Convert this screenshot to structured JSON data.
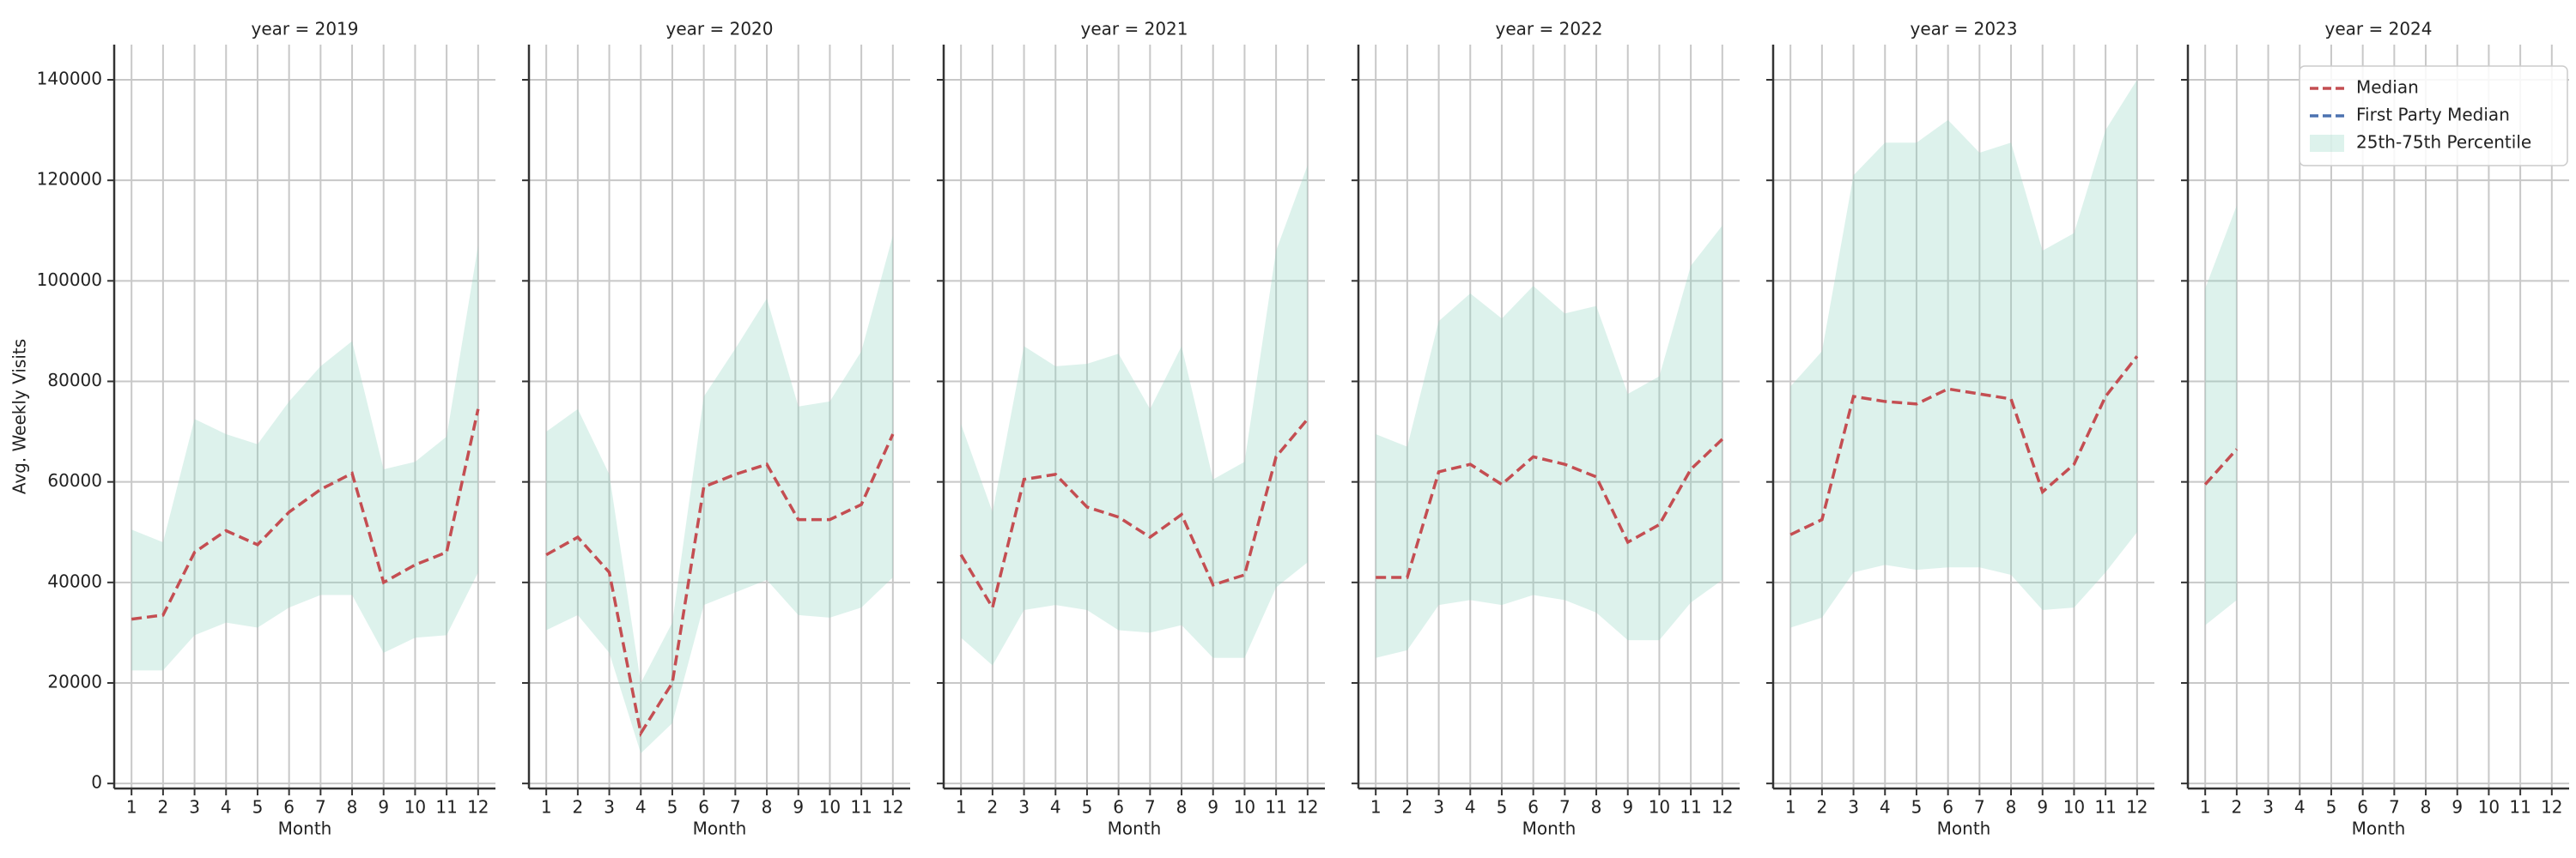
{
  "chart_data": [
    {
      "type": "line",
      "title": "year = 2019",
      "xlabel": "Month",
      "ylabel": "Avg. Weekly Visits",
      "x": [
        1,
        2,
        3,
        4,
        5,
        6,
        7,
        8,
        9,
        10,
        11,
        12
      ],
      "xlim": [
        0.45,
        12.55
      ],
      "xticks": [
        1,
        2,
        3,
        4,
        5,
        6,
        7,
        8,
        9,
        10,
        11,
        12
      ],
      "ylim": [
        -1000,
        147000
      ],
      "yticks": [
        0,
        20000,
        40000,
        60000,
        80000,
        100000,
        120000,
        140000
      ],
      "grid": true,
      "series": [
        {
          "color": "#c44e52",
          "dashed": true,
          "values": [
            32700,
            33500,
            46000,
            50300,
            47500,
            54000,
            58500,
            61700,
            40000,
            43500,
            46000,
            74500
          ]
        }
      ],
      "band": {
        "color": "#8fd3c0",
        "lower": [
          22500,
          22500,
          29500,
          32000,
          31000,
          35000,
          37500,
          37500,
          26000,
          29000,
          29500,
          42000
        ],
        "upper": [
          50500,
          48000,
          72500,
          69500,
          67500,
          76000,
          83000,
          88000,
          62500,
          64000,
          69000,
          107000
        ]
      }
    },
    {
      "type": "line",
      "title": "year = 2020",
      "xlabel": "Month",
      "x": [
        1,
        2,
        3,
        4,
        5,
        6,
        7,
        8,
        9,
        10,
        11,
        12
      ],
      "xlim": [
        0.45,
        12.55
      ],
      "xticks": [
        1,
        2,
        3,
        4,
        5,
        6,
        7,
        8,
        9,
        10,
        11,
        12
      ],
      "ylim": [
        -1000,
        147000
      ],
      "yticks": [
        0,
        20000,
        40000,
        60000,
        80000,
        100000,
        120000,
        140000
      ],
      "grid": true,
      "series": [
        {
          "color": "#c44e52",
          "dashed": true,
          "values": [
            45500,
            49000,
            42000,
            10000,
            20000,
            59000,
            61500,
            63500,
            52500,
            52500,
            55500,
            69500
          ]
        }
      ],
      "band": {
        "color": "#8fd3c0",
        "lower": [
          30500,
          33500,
          26000,
          6000,
          12000,
          35500,
          38000,
          40500,
          33500,
          33000,
          35000,
          41000
        ],
        "upper": [
          70000,
          74500,
          61500,
          20000,
          32000,
          77000,
          86500,
          96500,
          75000,
          76000,
          86000,
          109000
        ]
      }
    },
    {
      "type": "line",
      "title": "year = 2021",
      "xlabel": "Month",
      "x": [
        1,
        2,
        3,
        4,
        5,
        6,
        7,
        8,
        9,
        10,
        11,
        12
      ],
      "xlim": [
        0.45,
        12.55
      ],
      "xticks": [
        1,
        2,
        3,
        4,
        5,
        6,
        7,
        8,
        9,
        10,
        11,
        12
      ],
      "ylim": [
        -1000,
        147000
      ],
      "yticks": [
        0,
        20000,
        40000,
        60000,
        80000,
        100000,
        120000,
        140000
      ],
      "grid": true,
      "series": [
        {
          "color": "#c44e52",
          "dashed": true,
          "values": [
            45500,
            35000,
            60500,
            61500,
            55000,
            53000,
            49000,
            53500,
            39500,
            41500,
            65000,
            72500
          ]
        }
      ],
      "band": {
        "color": "#8fd3c0",
        "lower": [
          29000,
          23500,
          34500,
          35500,
          34500,
          30500,
          30000,
          31500,
          25000,
          25000,
          39000,
          44000
        ],
        "upper": [
          71500,
          54000,
          87000,
          83000,
          83500,
          85500,
          74500,
          87000,
          60500,
          64000,
          106000,
          123000
        ]
      }
    },
    {
      "type": "line",
      "title": "year = 2022",
      "xlabel": "Month",
      "x": [
        1,
        2,
        3,
        4,
        5,
        6,
        7,
        8,
        9,
        10,
        11,
        12
      ],
      "xlim": [
        0.45,
        12.55
      ],
      "xticks": [
        1,
        2,
        3,
        4,
        5,
        6,
        7,
        8,
        9,
        10,
        11,
        12
      ],
      "ylim": [
        -1000,
        147000
      ],
      "yticks": [
        0,
        20000,
        40000,
        60000,
        80000,
        100000,
        120000,
        140000
      ],
      "grid": true,
      "series": [
        {
          "color": "#c44e52",
          "dashed": true,
          "values": [
            41000,
            41000,
            62000,
            63500,
            59500,
            65000,
            63500,
            61000,
            48000,
            51500,
            62500,
            68500
          ]
        }
      ],
      "band": {
        "color": "#8fd3c0",
        "lower": [
          25000,
          26500,
          35500,
          36500,
          35500,
          37500,
          36500,
          34000,
          28500,
          28500,
          36000,
          40500
        ],
        "upper": [
          69500,
          67000,
          92000,
          97500,
          92500,
          99000,
          93500,
          95000,
          77500,
          81000,
          103000,
          111000
        ]
      }
    },
    {
      "type": "line",
      "title": "year = 2023",
      "xlabel": "Month",
      "x": [
        1,
        2,
        3,
        4,
        5,
        6,
        7,
        8,
        9,
        10,
        11,
        12
      ],
      "xlim": [
        0.45,
        12.55
      ],
      "xticks": [
        1,
        2,
        3,
        4,
        5,
        6,
        7,
        8,
        9,
        10,
        11,
        12
      ],
      "ylim": [
        -1000,
        147000
      ],
      "yticks": [
        0,
        20000,
        40000,
        60000,
        80000,
        100000,
        120000,
        140000
      ],
      "grid": true,
      "series": [
        {
          "color": "#c44e52",
          "dashed": true,
          "values": [
            49500,
            52500,
            77000,
            76000,
            75500,
            78500,
            77500,
            76500,
            58000,
            63500,
            77000,
            85000
          ]
        }
      ],
      "band": {
        "color": "#8fd3c0",
        "lower": [
          31000,
          33000,
          42000,
          43500,
          42500,
          43000,
          43000,
          41500,
          34500,
          35000,
          42000,
          50000
        ],
        "upper": [
          79000,
          86000,
          121000,
          127500,
          127500,
          132000,
          125500,
          127500,
          106000,
          109500,
          130000,
          140000
        ]
      }
    },
    {
      "type": "line",
      "title": "year = 2024",
      "xlabel": "Month",
      "x": [
        1,
        2,
        3,
        4,
        5,
        6,
        7,
        8,
        9,
        10,
        11,
        12
      ],
      "xlim": [
        0.45,
        12.55
      ],
      "xticks": [
        1,
        2,
        3,
        4,
        5,
        6,
        7,
        8,
        9,
        10,
        11,
        12
      ],
      "ylim": [
        -1000,
        147000
      ],
      "yticks": [
        0,
        20000,
        40000,
        60000,
        80000,
        100000,
        120000,
        140000
      ],
      "grid": true,
      "legend": "upper right",
      "series": [
        {
          "name": "Median",
          "color": "#c44e52",
          "dashed": true,
          "values": [
            59500,
            66500,
            null,
            null,
            null,
            null,
            null,
            null,
            null,
            null,
            null,
            null
          ]
        },
        {
          "name": "First Party Median",
          "color": "#4c72b0",
          "dashed": true,
          "values": [
            null,
            null,
            null,
            null,
            null,
            null,
            null,
            null,
            null,
            null,
            null,
            null
          ]
        }
      ],
      "band": {
        "name": "25th-75th Percentile",
        "color": "#8fd3c0",
        "lower": [
          31500,
          36500,
          null,
          null,
          null,
          null,
          null,
          null,
          null,
          null,
          null,
          null
        ],
        "upper": [
          98500,
          115000,
          null,
          null,
          null,
          null,
          null,
          null,
          null,
          null,
          null,
          null
        ]
      }
    }
  ]
}
